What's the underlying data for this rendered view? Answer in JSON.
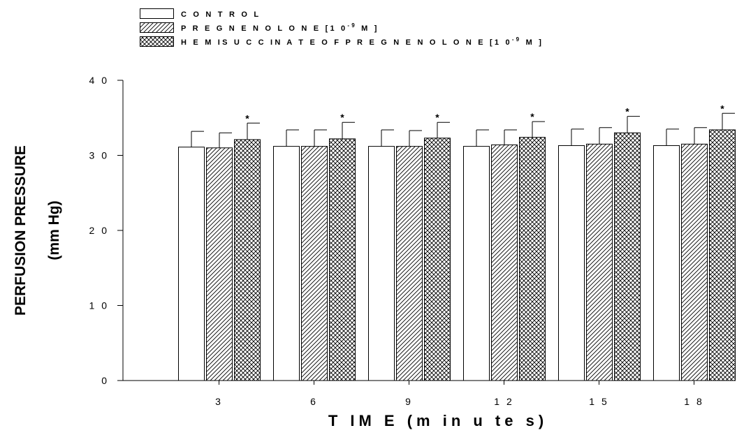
{
  "chart_data": {
    "type": "bar",
    "xlabel": "T IM E  (m in u te s)",
    "ylabel_lines": [
      "PERFUSION PRESSURE",
      "(mm Hg)"
    ],
    "ylim": [
      0,
      40
    ],
    "yticks": [
      0,
      10,
      20,
      30,
      40
    ],
    "ytick_labels": [
      "0",
      "1 0",
      "2 0",
      "3 0",
      "4 0"
    ],
    "categories": [
      "3",
      "6",
      "9",
      "1 2",
      "1 5",
      "1 8"
    ],
    "legend_position": "top-left",
    "series": [
      {
        "name": "C O N T R O L",
        "name_superscript": "",
        "name_suffix": "",
        "pattern": "none",
        "values": [
          31.1,
          31.2,
          31.2,
          31.2,
          31.3,
          31.3
        ],
        "errors": [
          2.1,
          2.2,
          2.2,
          2.2,
          2.2,
          2.2
        ],
        "significant": [
          false,
          false,
          false,
          false,
          false,
          false
        ]
      },
      {
        "name": "P R E G N E N O L O N E  [1 0",
        "name_superscript": "-9",
        "name_suffix": " M ]",
        "pattern": "diagonal",
        "values": [
          31.0,
          31.2,
          31.2,
          31.4,
          31.5,
          31.5
        ],
        "errors": [
          2.0,
          2.2,
          2.1,
          2.0,
          2.2,
          2.2
        ],
        "significant": [
          false,
          false,
          false,
          false,
          false,
          false
        ]
      },
      {
        "name": "H E M IS U C C IN A T E  O F  P R E G N E N O L O N E  [1 0",
        "name_superscript": "-9",
        "name_suffix": " M ]",
        "pattern": "crosshatch",
        "values": [
          32.1,
          32.2,
          32.3,
          32.4,
          33.0,
          33.4
        ],
        "errors": [
          2.2,
          2.2,
          2.1,
          2.1,
          2.2,
          2.2
        ],
        "significant": [
          true,
          true,
          true,
          true,
          true,
          true
        ]
      }
    ],
    "significance_marker": "*"
  }
}
